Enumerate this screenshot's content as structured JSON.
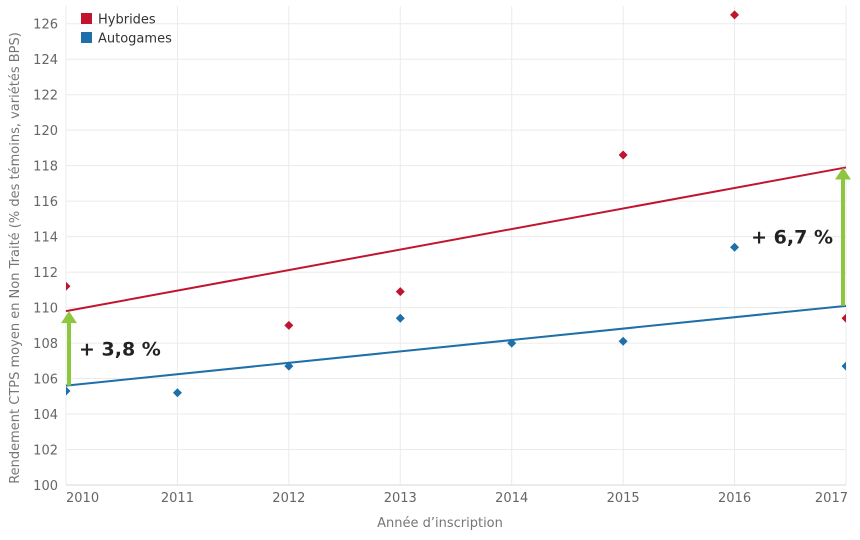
{
  "chart_data": {
    "type": "scatter",
    "xlabel": "Année d’inscription",
    "ylabel": "Rendement CTPS moyen en Non Traité (% des témoins, variétés BPS)",
    "xlim": [
      2010,
      2017
    ],
    "ylim": [
      100,
      127
    ],
    "x_ticks": [
      "2010",
      "2011",
      "2012",
      "2013",
      "2014",
      "2015",
      "2016",
      "2017"
    ],
    "y_ticks": [
      "100",
      "102",
      "104",
      "106",
      "108",
      "110",
      "112",
      "114",
      "116",
      "118",
      "120",
      "122",
      "124",
      "126"
    ],
    "grid": true,
    "legend": "top-left",
    "series": [
      {
        "name": "Hybrides",
        "color": "#c0152f",
        "points": [
          {
            "x": 2010,
            "y": 111.2
          },
          {
            "x": 2012,
            "y": 109.0
          },
          {
            "x": 2013,
            "y": 110.9
          },
          {
            "x": 2015,
            "y": 118.6
          },
          {
            "x": 2016,
            "y": 126.5
          },
          {
            "x": 2017,
            "y": 109.4
          }
        ],
        "trend": {
          "x": [
            2010,
            2017
          ],
          "y": [
            109.8,
            117.9
          ]
        }
      },
      {
        "name": "Autogames",
        "color": "#1f6fa8",
        "points": [
          {
            "x": 2010,
            "y": 105.3
          },
          {
            "x": 2011,
            "y": 105.2
          },
          {
            "x": 2012,
            "y": 106.7
          },
          {
            "x": 2013,
            "y": 109.4
          },
          {
            "x": 2014,
            "y": 108.0
          },
          {
            "x": 2015,
            "y": 108.1
          },
          {
            "x": 2016,
            "y": 113.4
          },
          {
            "x": 2017,
            "y": 106.7
          }
        ],
        "trend": {
          "x": [
            2010,
            2017
          ],
          "y": [
            105.6,
            110.1
          ]
        }
      }
    ],
    "annotations": [
      {
        "text": "+ 3,8 %",
        "x": 2010,
        "from": 105.6,
        "to": 109.8,
        "color": "#8dc63f"
      },
      {
        "text": "+ 6,7 %",
        "x": 2017,
        "from": 110.1,
        "to": 117.9,
        "color": "#8dc63f"
      }
    ]
  }
}
